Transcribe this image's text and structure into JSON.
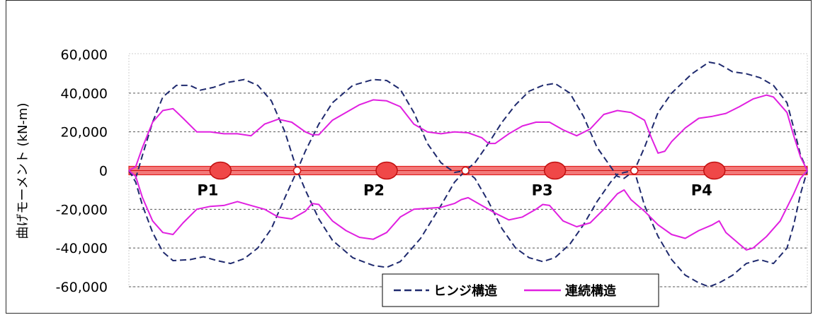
{
  "chart_data": {
    "type": "line",
    "ylabel": "曲げモーメント (kN-m)",
    "xlabel": "",
    "ylim": [
      -60000,
      60000
    ],
    "yticks": [
      60000,
      40000,
      20000,
      0,
      -20000,
      -40000,
      -60000
    ],
    "ytick_labels": [
      "60,000",
      "40,000",
      "20,000",
      "0",
      "-20,000",
      "-40,000",
      "-60,000"
    ],
    "xlim": [
      0,
      100
    ],
    "grid": true,
    "legend_position": "bottom-center",
    "piers": [
      {
        "label": "P1",
        "x": 13.5
      },
      {
        "label": "P2",
        "x": 38.0
      },
      {
        "label": "P3",
        "x": 62.8
      },
      {
        "label": "P4",
        "x": 86.3
      }
    ],
    "hinges": [
      {
        "x": 24.8
      },
      {
        "x": 49.6
      },
      {
        "x": 74.5
      }
    ],
    "series": [
      {
        "name": "ヒンジ構造",
        "color": "#1f2a6e",
        "style": "dashed",
        "upper": [
          [
            0,
            0
          ],
          [
            1,
            -4000
          ],
          [
            2,
            8000
          ],
          [
            3.5,
            25000
          ],
          [
            5,
            38000
          ],
          [
            7,
            44000
          ],
          [
            9,
            44000
          ],
          [
            10.5,
            41500
          ],
          [
            12.5,
            43000
          ],
          [
            14.5,
            45500
          ],
          [
            17,
            47000
          ],
          [
            19,
            44000
          ],
          [
            21,
            36000
          ],
          [
            23,
            20000
          ],
          [
            24.8,
            0
          ],
          [
            26,
            -10000
          ],
          [
            28,
            -25000
          ],
          [
            30,
            -36000
          ],
          [
            33,
            -45000
          ],
          [
            36,
            -49000
          ],
          [
            38,
            -50000
          ],
          [
            40,
            -47000
          ],
          [
            43,
            -35000
          ],
          [
            46,
            -18000
          ],
          [
            48,
            -6000
          ],
          [
            49.6,
            0
          ],
          [
            51,
            4000
          ],
          [
            53,
            14000
          ],
          [
            55,
            25000
          ],
          [
            57,
            34000
          ],
          [
            59,
            41000
          ],
          [
            61,
            44000
          ],
          [
            62.8,
            45000
          ],
          [
            65,
            40000
          ],
          [
            67,
            28000
          ],
          [
            69,
            12000
          ],
          [
            71,
            2000
          ],
          [
            72,
            -3000
          ],
          [
            73,
            -4000
          ],
          [
            74.5,
            0
          ],
          [
            76,
            12000
          ],
          [
            78,
            30000
          ],
          [
            80,
            40000
          ],
          [
            83,
            50000
          ],
          [
            85.5,
            56000
          ],
          [
            87,
            55000
          ],
          [
            89,
            51000
          ],
          [
            91,
            50000
          ],
          [
            93,
            48000
          ],
          [
            95,
            44000
          ],
          [
            97,
            35000
          ],
          [
            98,
            22000
          ],
          [
            99,
            8000
          ],
          [
            100,
            0
          ]
        ],
        "lower": [
          [
            0,
            0
          ],
          [
            1,
            -6000
          ],
          [
            2,
            -18000
          ],
          [
            3.5,
            -32000
          ],
          [
            5,
            -42000
          ],
          [
            6.5,
            -46500
          ],
          [
            9,
            -46000
          ],
          [
            11,
            -44500
          ],
          [
            13,
            -46500
          ],
          [
            15,
            -48000
          ],
          [
            17,
            -45500
          ],
          [
            19,
            -40000
          ],
          [
            21,
            -30000
          ],
          [
            23,
            -14000
          ],
          [
            24.8,
            0
          ],
          [
            26,
            10000
          ],
          [
            28,
            24000
          ],
          [
            30,
            35000
          ],
          [
            33,
            44000
          ],
          [
            36,
            47000
          ],
          [
            38,
            46500
          ],
          [
            40,
            42000
          ],
          [
            42,
            30000
          ],
          [
            44,
            14000
          ],
          [
            46,
            4000
          ],
          [
            48,
            -1000
          ],
          [
            49.6,
            0
          ],
          [
            51,
            -4000
          ],
          [
            53,
            -16000
          ],
          [
            55,
            -30000
          ],
          [
            57,
            -40000
          ],
          [
            59,
            -45000
          ],
          [
            61,
            -47000
          ],
          [
            62.8,
            -45000
          ],
          [
            65,
            -38000
          ],
          [
            67,
            -28000
          ],
          [
            69,
            -16000
          ],
          [
            71,
            -6000
          ],
          [
            72,
            -2000
          ],
          [
            73,
            -1000
          ],
          [
            74.5,
            0
          ],
          [
            76,
            -18000
          ],
          [
            78,
            -34000
          ],
          [
            80,
            -46000
          ],
          [
            82,
            -54000
          ],
          [
            84,
            -58000
          ],
          [
            85.5,
            -60000
          ],
          [
            87,
            -58000
          ],
          [
            89,
            -54000
          ],
          [
            91,
            -48000
          ],
          [
            93,
            -46000
          ],
          [
            95,
            -48000
          ],
          [
            97,
            -40000
          ],
          [
            98,
            -28000
          ],
          [
            99,
            -12000
          ],
          [
            100,
            0
          ]
        ]
      },
      {
        "name": "連続構造",
        "color": "#e020e0",
        "style": "solid",
        "upper": [
          [
            0,
            0
          ],
          [
            1,
            2000
          ],
          [
            2,
            12000
          ],
          [
            3.5,
            25000
          ],
          [
            5,
            31000
          ],
          [
            6.5,
            32000
          ],
          [
            8,
            27000
          ],
          [
            10,
            20000
          ],
          [
            12,
            20000
          ],
          [
            14,
            19000
          ],
          [
            16,
            19000
          ],
          [
            18,
            18000
          ],
          [
            20,
            24000
          ],
          [
            22,
            26500
          ],
          [
            24,
            25000
          ],
          [
            26,
            20000
          ],
          [
            27,
            18500
          ],
          [
            28,
            18500
          ],
          [
            30,
            26000
          ],
          [
            32,
            30000
          ],
          [
            34,
            34000
          ],
          [
            36,
            36500
          ],
          [
            38,
            36000
          ],
          [
            40,
            33000
          ],
          [
            42,
            24000
          ],
          [
            44,
            20000
          ],
          [
            46,
            19000
          ],
          [
            48,
            20000
          ],
          [
            50,
            19500
          ],
          [
            52,
            17000
          ],
          [
            53,
            14000
          ],
          [
            54,
            14000
          ],
          [
            56,
            19000
          ],
          [
            58,
            23000
          ],
          [
            60,
            25000
          ],
          [
            62,
            25000
          ],
          [
            64,
            21000
          ],
          [
            66,
            18000
          ],
          [
            68,
            21500
          ],
          [
            70,
            29000
          ],
          [
            72,
            31000
          ],
          [
            74,
            30000
          ],
          [
            76,
            26000
          ],
          [
            77,
            17000
          ],
          [
            78,
            9000
          ],
          [
            79,
            10000
          ],
          [
            80,
            15000
          ],
          [
            82,
            22000
          ],
          [
            84,
            27000
          ],
          [
            86,
            28000
          ],
          [
            88,
            29500
          ],
          [
            90,
            33000
          ],
          [
            92,
            37000
          ],
          [
            94,
            39000
          ],
          [
            95,
            38000
          ],
          [
            97,
            30000
          ],
          [
            98,
            18000
          ],
          [
            99,
            7000
          ],
          [
            100,
            0
          ]
        ],
        "lower": [
          [
            0,
            0
          ],
          [
            1,
            -3000
          ],
          [
            2,
            -14000
          ],
          [
            3.5,
            -26000
          ],
          [
            5,
            -32000
          ],
          [
            6.5,
            -33000
          ],
          [
            8,
            -27000
          ],
          [
            10,
            -20000
          ],
          [
            12,
            -18500
          ],
          [
            14,
            -18000
          ],
          [
            16,
            -16000
          ],
          [
            18,
            -18000
          ],
          [
            20,
            -20000
          ],
          [
            22,
            -24000
          ],
          [
            24,
            -25000
          ],
          [
            26,
            -21000
          ],
          [
            27,
            -17000
          ],
          [
            28,
            -17500
          ],
          [
            30,
            -26000
          ],
          [
            32,
            -31000
          ],
          [
            34,
            -34500
          ],
          [
            36,
            -35500
          ],
          [
            38,
            -32000
          ],
          [
            40,
            -24000
          ],
          [
            42,
            -20000
          ],
          [
            44,
            -19500
          ],
          [
            46,
            -19000
          ],
          [
            48,
            -17000
          ],
          [
            49,
            -15000
          ],
          [
            50,
            -14000
          ],
          [
            52,
            -18000
          ],
          [
            54,
            -22000
          ],
          [
            56,
            -25500
          ],
          [
            58,
            -24000
          ],
          [
            60,
            -20000
          ],
          [
            61,
            -17500
          ],
          [
            62,
            -18000
          ],
          [
            64,
            -26000
          ],
          [
            66,
            -29000
          ],
          [
            68,
            -27000
          ],
          [
            70,
            -20000
          ],
          [
            72,
            -12000
          ],
          [
            73,
            -10000
          ],
          [
            74,
            -15000
          ],
          [
            76,
            -21000
          ],
          [
            78,
            -28000
          ],
          [
            80,
            -33000
          ],
          [
            82,
            -35000
          ],
          [
            84,
            -31000
          ],
          [
            86,
            -28000
          ],
          [
            87,
            -26000
          ],
          [
            88,
            -32000
          ],
          [
            90,
            -38000
          ],
          [
            91,
            -41000
          ],
          [
            92,
            -40000
          ],
          [
            94,
            -34000
          ],
          [
            96,
            -26000
          ],
          [
            98,
            -12000
          ],
          [
            99,
            -4000
          ],
          [
            100,
            0
          ]
        ]
      }
    ]
  }
}
